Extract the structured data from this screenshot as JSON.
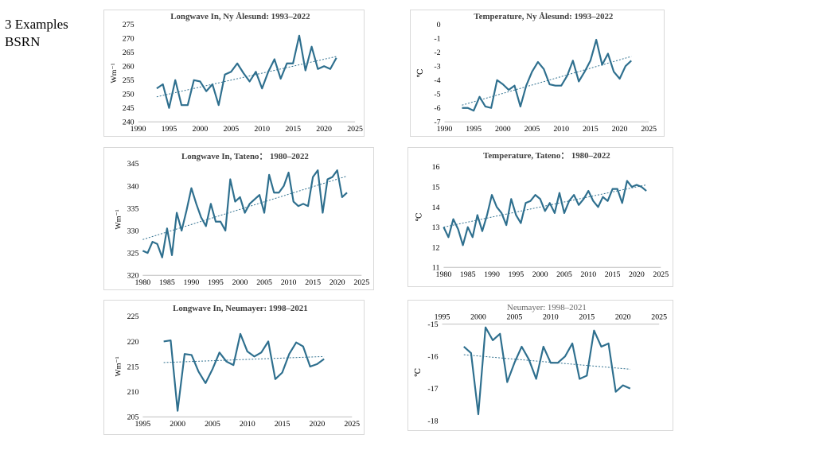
{
  "slide": {
    "line1": "3 Examples",
    "line2": "BSRN"
  },
  "colors": {
    "series": "#2e6f8e",
    "trend": "#2e6f8e",
    "border": "#d9d9d9"
  },
  "chart_data": [
    {
      "type": "line",
      "title": "Longwave In, Ny Ålesund: 1993–2022",
      "ylabel": "Wm⁻¹",
      "xlim": [
        1990,
        2025
      ],
      "ylim": [
        240,
        275
      ],
      "xticks": [
        1990,
        1995,
        2000,
        2005,
        2010,
        2015,
        2020,
        2025
      ],
      "yticks": [
        240,
        245,
        250,
        255,
        260,
        265,
        270,
        275
      ],
      "series": [
        {
          "x": [
            1993,
            1994,
            1995,
            1996,
            1997,
            1998,
            1999,
            2000,
            2001,
            2002,
            2003,
            2004,
            2005,
            2006,
            2007,
            2008,
            2009,
            2010,
            2011,
            2012,
            2013,
            2014,
            2015,
            2016,
            2017,
            2018,
            2019,
            2020,
            2021,
            2022
          ],
          "values": [
            252,
            253.5,
            245,
            255,
            246,
            246,
            255,
            254.5,
            251,
            253.5,
            246,
            257,
            258,
            261,
            257.5,
            254.5,
            258,
            252,
            258,
            262.5,
            255.5,
            261,
            261,
            271,
            258.5,
            267,
            259,
            260,
            259,
            263
          ]
        }
      ],
      "trend": [
        [
          1993,
          249
        ],
        [
          2022,
          263.5
        ]
      ]
    },
    {
      "type": "line",
      "title": "Temperature, Ny Ålesund: 1993–2022",
      "ylabel": "℃",
      "xlim": [
        1990,
        2025
      ],
      "ylim": [
        -7,
        0
      ],
      "xticks": [
        1990,
        1995,
        2000,
        2005,
        2010,
        2015,
        2020,
        2025
      ],
      "yticks": [
        -7,
        -6,
        -5,
        -4,
        -3,
        -2,
        -1,
        0
      ],
      "series": [
        {
          "x": [
            1993,
            1994,
            1995,
            1996,
            1997,
            1998,
            1999,
            2000,
            2001,
            2002,
            2003,
            2004,
            2005,
            2006,
            2007,
            2008,
            2009,
            2010,
            2011,
            2012,
            2013,
            2014,
            2015,
            2016,
            2017,
            2018,
            2019,
            2020,
            2021,
            2022
          ],
          "values": [
            -6,
            -6,
            -6.2,
            -5.2,
            -5.9,
            -6,
            -4,
            -4.3,
            -4.7,
            -4.4,
            -5.9,
            -4.4,
            -3.4,
            -2.7,
            -3.2,
            -4.3,
            -4.4,
            -4.4,
            -3.7,
            -2.6,
            -4.1,
            -3.4,
            -2.6,
            -1.1,
            -2.9,
            -2.1,
            -3.4,
            -3.9,
            -3,
            -2.6
          ]
        }
      ],
      "trend": [
        [
          1993,
          -5.8
        ],
        [
          2022,
          -2.3
        ]
      ]
    },
    {
      "type": "line",
      "title": "Longwave In, Tateno： 1980–2022",
      "ylabel": "Wm⁻¹",
      "xlim": [
        1980,
        2025
      ],
      "ylim": [
        320,
        345
      ],
      "xticks": [
        1980,
        1985,
        1990,
        1995,
        2000,
        2005,
        2010,
        2015,
        2020,
        2025
      ],
      "yticks": [
        320,
        325,
        330,
        335,
        340,
        345
      ],
      "series": [
        {
          "x": [
            1980,
            1981,
            1982,
            1983,
            1984,
            1985,
            1986,
            1987,
            1988,
            1989,
            1990,
            1991,
            1992,
            1993,
            1994,
            1995,
            1996,
            1997,
            1998,
            1999,
            2000,
            2001,
            2002,
            2003,
            2004,
            2005,
            2006,
            2007,
            2008,
            2009,
            2010,
            2011,
            2012,
            2013,
            2014,
            2015,
            2016,
            2017,
            2018,
            2019,
            2020,
            2021,
            2022
          ],
          "values": [
            325.5,
            325,
            327.5,
            327,
            324,
            330.5,
            324.5,
            334,
            330,
            334.5,
            339.5,
            336,
            333,
            331,
            336,
            332,
            332,
            330,
            341.5,
            336.5,
            337.5,
            334,
            336,
            337,
            338,
            334,
            342.5,
            338.5,
            338.5,
            340,
            343,
            336.5,
            335.5,
            336,
            335.5,
            342,
            343.5,
            334,
            341.5,
            342,
            343.5,
            337.5,
            338.5
          ]
        }
      ],
      "trend": [
        [
          1980,
          328
        ],
        [
          2022,
          342.2
        ]
      ]
    },
    {
      "type": "line",
      "title": "Temperature, Tateno： 1980–2022",
      "ylabel": "℃",
      "xlim": [
        1980,
        2025
      ],
      "ylim": [
        11,
        16
      ],
      "xticks": [
        1980,
        1985,
        1990,
        1995,
        2000,
        2005,
        2010,
        2015,
        2020,
        2025
      ],
      "yticks": [
        11,
        12,
        13,
        14,
        15,
        16
      ],
      "series": [
        {
          "x": [
            1980,
            1981,
            1982,
            1983,
            1984,
            1985,
            1986,
            1987,
            1988,
            1989,
            1990,
            1991,
            1992,
            1993,
            1994,
            1995,
            1996,
            1997,
            1998,
            1999,
            2000,
            2001,
            2002,
            2003,
            2004,
            2005,
            2006,
            2007,
            2008,
            2009,
            2010,
            2011,
            2012,
            2013,
            2014,
            2015,
            2016,
            2017,
            2018,
            2019,
            2020,
            2021,
            2022
          ],
          "values": [
            13,
            12.5,
            13.4,
            12.9,
            12.1,
            13,
            12.5,
            13.6,
            12.8,
            13.6,
            14.6,
            14,
            13.7,
            13.1,
            14.4,
            13.6,
            13.2,
            14.2,
            14.3,
            14.6,
            14.4,
            13.8,
            14.2,
            13.7,
            14.7,
            13.7,
            14.3,
            14.6,
            14.1,
            14.4,
            14.8,
            14.3,
            14,
            14.5,
            14.3,
            14.9,
            14.9,
            14.2,
            15.3,
            15,
            15.1,
            15,
            14.8
          ]
        }
      ],
      "trend": [
        [
          1980,
          13
        ],
        [
          2022,
          15.1
        ]
      ]
    },
    {
      "type": "line",
      "title": "Longwave In, Neumayer: 1998–2021",
      "ylabel": "Wm⁻¹",
      "xlim": [
        1995,
        2025
      ],
      "ylim": [
        205,
        225
      ],
      "xticks": [
        1995,
        2000,
        2005,
        2010,
        2015,
        2020,
        2025
      ],
      "yticks": [
        205,
        210,
        215,
        220,
        225
      ],
      "series": [
        {
          "x": [
            1998,
            1999,
            2000,
            2001,
            2002,
            2003,
            2004,
            2005,
            2006,
            2007,
            2008,
            2009,
            2010,
            2011,
            2012,
            2013,
            2014,
            2015,
            2016,
            2017,
            2018,
            2019,
            2020,
            2021
          ],
          "values": [
            220,
            220.2,
            206.2,
            217.5,
            217.3,
            214,
            211.7,
            214.5,
            217.8,
            216,
            215.3,
            221.5,
            218,
            217,
            217.8,
            220,
            212.5,
            213.8,
            217.5,
            219.8,
            219,
            215,
            215.5,
            216.5
          ]
        }
      ],
      "trend": [
        [
          1998,
          215.8
        ],
        [
          2021,
          217
        ]
      ]
    },
    {
      "type": "line",
      "title": "Neumayer: 1998–2021",
      "ylabel": "℃",
      "xlim": [
        1995,
        2025
      ],
      "ylim": [
        -18,
        -15
      ],
      "xaxis_position": "top",
      "xticks": [
        1995,
        2000,
        2005,
        2010,
        2015,
        2020,
        2025
      ],
      "yticks": [
        -18,
        -17,
        -16,
        -15
      ],
      "series": [
        {
          "x": [
            1998,
            1999,
            2000,
            2001,
            2002,
            2003,
            2004,
            2005,
            2006,
            2007,
            2008,
            2009,
            2010,
            2011,
            2012,
            2013,
            2014,
            2015,
            2016,
            2017,
            2018,
            2019,
            2020,
            2021
          ],
          "values": [
            -15.7,
            -15.9,
            -17.8,
            -15.1,
            -15.5,
            -15.3,
            -16.8,
            -16.2,
            -15.7,
            -16.1,
            -16.7,
            -15.7,
            -16.2,
            -16.2,
            -16,
            -15.6,
            -16.7,
            -16.6,
            -15.2,
            -15.7,
            -15.6,
            -17.1,
            -16.9,
            -17
          ]
        }
      ],
      "trend": [
        [
          1998,
          -15.95
        ],
        [
          2021,
          -16.4
        ]
      ]
    }
  ]
}
